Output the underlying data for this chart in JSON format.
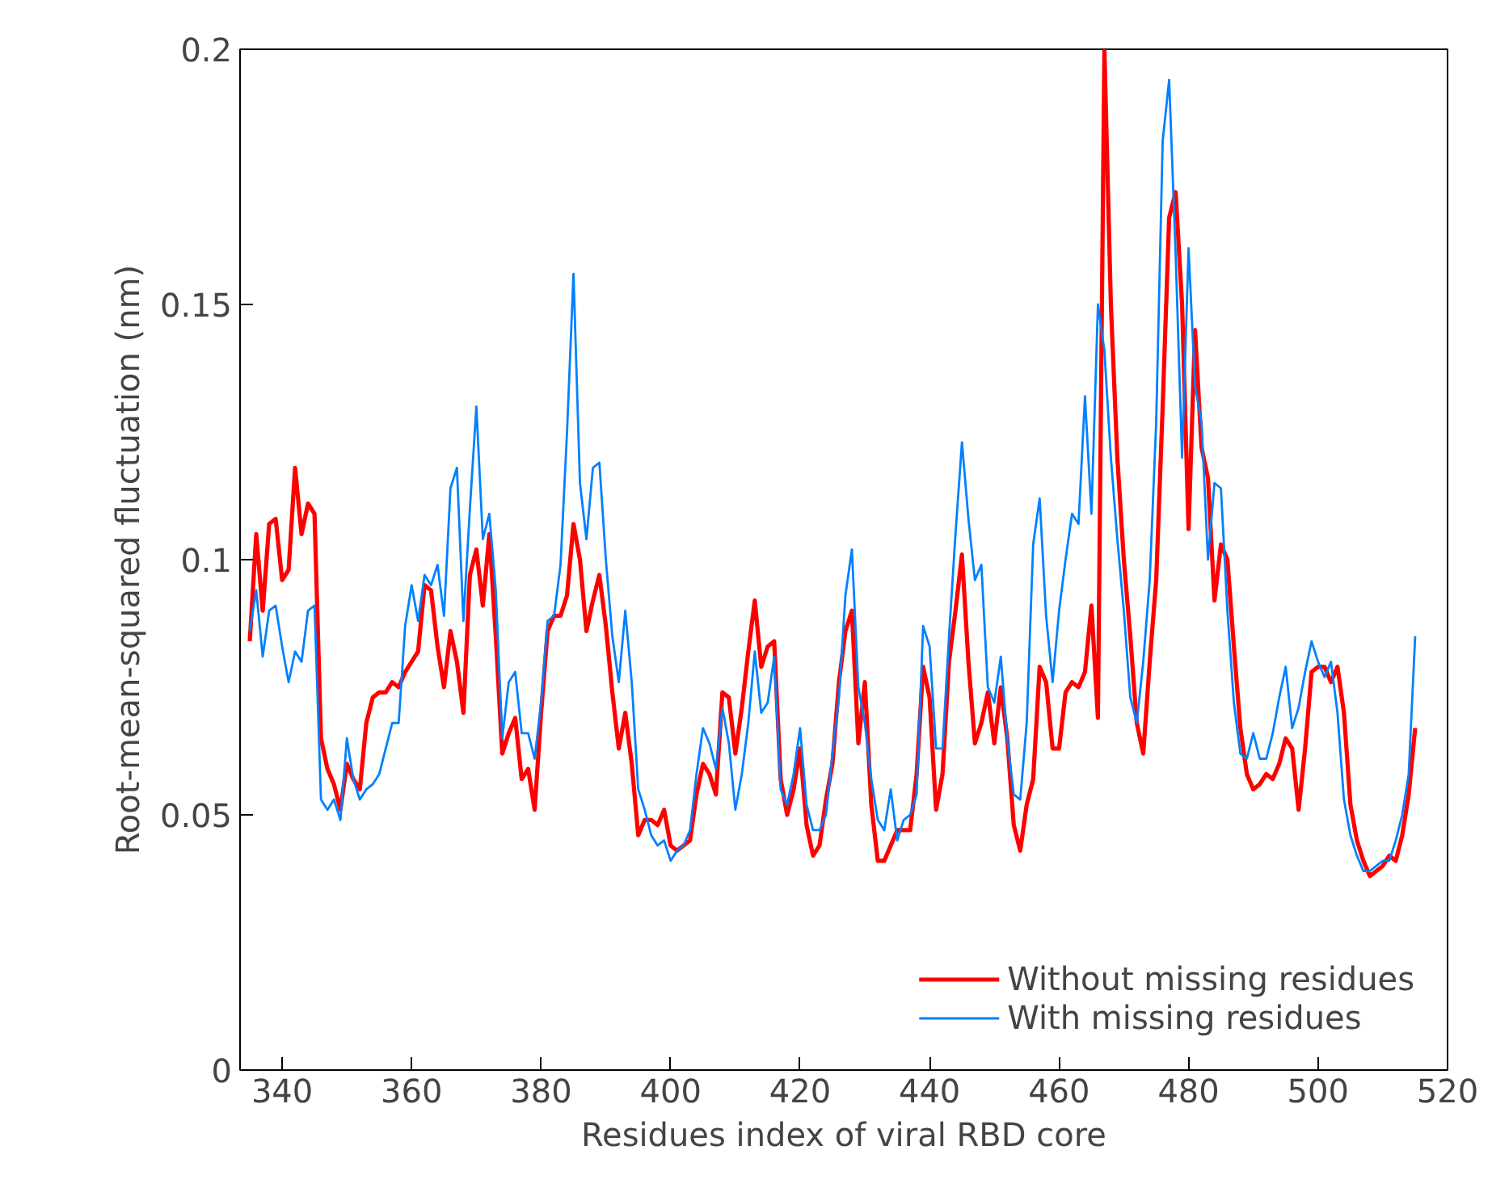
{
  "chart_data": {
    "type": "line",
    "xlabel": "Residues index of viral RBD core",
    "ylabel": "Root-mean-squared fluctuation (nm)",
    "x": [
      335,
      336,
      337,
      338,
      339,
      340,
      341,
      342,
      343,
      344,
      345,
      346,
      347,
      348,
      349,
      350,
      351,
      352,
      353,
      354,
      355,
      356,
      357,
      358,
      359,
      360,
      361,
      362,
      363,
      364,
      365,
      366,
      367,
      368,
      369,
      370,
      371,
      372,
      373,
      374,
      375,
      376,
      377,
      378,
      379,
      380,
      381,
      382,
      383,
      384,
      385,
      386,
      387,
      388,
      389,
      390,
      391,
      392,
      393,
      394,
      395,
      396,
      397,
      398,
      399,
      400,
      401,
      402,
      403,
      404,
      405,
      406,
      407,
      408,
      409,
      410,
      411,
      412,
      413,
      414,
      415,
      416,
      417,
      418,
      419,
      420,
      421,
      422,
      423,
      424,
      425,
      426,
      427,
      428,
      429,
      430,
      431,
      432,
      433,
      434,
      435,
      436,
      437,
      438,
      439,
      440,
      441,
      442,
      443,
      444,
      445,
      446,
      447,
      448,
      449,
      450,
      451,
      452,
      453,
      454,
      455,
      456,
      457,
      458,
      459,
      460,
      461,
      462,
      463,
      464,
      465,
      466,
      467,
      468,
      469,
      470,
      471,
      472,
      473,
      474,
      475,
      476,
      477,
      478,
      479,
      480,
      481,
      482,
      483,
      484,
      485,
      486,
      487,
      488,
      489,
      490,
      491,
      492,
      493,
      494,
      495,
      496,
      497,
      498,
      499,
      500,
      501,
      502,
      503,
      504,
      505,
      506,
      507,
      508,
      509,
      510,
      511,
      512,
      513,
      514,
      515
    ],
    "series": [
      {
        "name": "Without missing residues",
        "color": "#ff0000",
        "values": [
          0.084,
          0.105,
          0.09,
          0.107,
          0.108,
          0.096,
          0.098,
          0.118,
          0.105,
          0.111,
          0.109,
          0.065,
          0.059,
          0.056,
          0.051,
          0.06,
          0.057,
          0.055,
          0.068,
          0.073,
          0.074,
          0.074,
          0.076,
          0.075,
          0.078,
          0.08,
          0.082,
          0.095,
          0.094,
          0.083,
          0.075,
          0.086,
          0.08,
          0.07,
          0.097,
          0.102,
          0.091,
          0.105,
          0.085,
          0.062,
          0.066,
          0.069,
          0.057,
          0.059,
          0.051,
          0.07,
          0.086,
          0.089,
          0.089,
          0.093,
          0.107,
          0.1,
          0.086,
          0.092,
          0.097,
          0.087,
          0.074,
          0.063,
          0.07,
          0.06,
          0.046,
          0.049,
          0.049,
          0.048,
          0.051,
          0.044,
          0.043,
          0.044,
          0.045,
          0.054,
          0.06,
          0.058,
          0.054,
          0.074,
          0.073,
          0.062,
          0.071,
          0.082,
          0.092,
          0.079,
          0.083,
          0.084,
          0.057,
          0.05,
          0.055,
          0.063,
          0.048,
          0.042,
          0.044,
          0.053,
          0.06,
          0.076,
          0.086,
          0.09,
          0.064,
          0.076,
          0.052,
          0.041,
          0.041,
          0.044,
          0.047,
          0.047,
          0.047,
          0.058,
          0.079,
          0.073,
          0.051,
          0.058,
          0.08,
          0.09,
          0.101,
          0.08,
          0.064,
          0.068,
          0.074,
          0.064,
          0.075,
          0.065,
          0.048,
          0.043,
          0.052,
          0.057,
          0.079,
          0.076,
          0.063,
          0.063,
          0.074,
          0.076,
          0.075,
          0.078,
          0.091,
          0.069,
          0.2,
          0.15,
          0.12,
          0.1,
          0.085,
          0.068,
          0.062,
          0.08,
          0.096,
          0.13,
          0.167,
          0.172,
          0.15,
          0.106,
          0.145,
          0.122,
          0.116,
          0.092,
          0.103,
          0.1,
          0.083,
          0.067,
          0.058,
          0.055,
          0.056,
          0.058,
          0.057,
          0.06,
          0.065,
          0.063,
          0.051,
          0.063,
          0.078,
          0.079,
          0.079,
          0.076,
          0.079,
          0.07,
          0.052,
          0.045,
          0.041,
          0.038,
          0.039,
          0.04,
          0.042,
          0.041,
          0.046,
          0.054,
          0.067
        ]
      },
      {
        "name": "With missing residues",
        "color": "#0080ff",
        "values": [
          0.086,
          0.094,
          0.081,
          0.09,
          0.091,
          0.083,
          0.076,
          0.082,
          0.08,
          0.09,
          0.091,
          0.053,
          0.051,
          0.053,
          0.049,
          0.065,
          0.057,
          0.053,
          0.055,
          0.056,
          0.058,
          0.063,
          0.068,
          0.068,
          0.087,
          0.095,
          0.088,
          0.097,
          0.095,
          0.099,
          0.089,
          0.114,
          0.118,
          0.088,
          0.11,
          0.13,
          0.104,
          0.109,
          0.094,
          0.065,
          0.076,
          0.078,
          0.066,
          0.066,
          0.061,
          0.072,
          0.088,
          0.089,
          0.099,
          0.125,
          0.156,
          0.115,
          0.104,
          0.118,
          0.119,
          0.1,
          0.085,
          0.076,
          0.09,
          0.076,
          0.055,
          0.051,
          0.046,
          0.044,
          0.045,
          0.041,
          0.043,
          0.044,
          0.047,
          0.058,
          0.067,
          0.064,
          0.059,
          0.071,
          0.064,
          0.051,
          0.058,
          0.068,
          0.082,
          0.07,
          0.072,
          0.081,
          0.055,
          0.052,
          0.058,
          0.067,
          0.052,
          0.047,
          0.047,
          0.05,
          0.062,
          0.073,
          0.093,
          0.102,
          0.075,
          0.068,
          0.057,
          0.049,
          0.047,
          0.055,
          0.045,
          0.049,
          0.05,
          0.054,
          0.087,
          0.083,
          0.063,
          0.063,
          0.085,
          0.105,
          0.123,
          0.108,
          0.096,
          0.099,
          0.075,
          0.072,
          0.081,
          0.065,
          0.054,
          0.053,
          0.068,
          0.103,
          0.112,
          0.089,
          0.076,
          0.09,
          0.1,
          0.109,
          0.107,
          0.132,
          0.109,
          0.15,
          0.141,
          0.12,
          0.104,
          0.09,
          0.073,
          0.068,
          0.08,
          0.096,
          0.127,
          0.182,
          0.194,
          0.16,
          0.12,
          0.161,
          0.134,
          0.127,
          0.1,
          0.115,
          0.114,
          0.09,
          0.072,
          0.062,
          0.061,
          0.066,
          0.061,
          0.061,
          0.066,
          0.073,
          0.079,
          0.067,
          0.071,
          0.078,
          0.084,
          0.08,
          0.077,
          0.08,
          0.07,
          0.053,
          0.046,
          0.042,
          0.039,
          0.039,
          0.04,
          0.041,
          0.041,
          0.045,
          0.05,
          0.058,
          0.085
        ]
      }
    ],
    "xlim": [
      333.5,
      520
    ],
    "xticks": [
      340,
      360,
      380,
      400,
      420,
      440,
      460,
      480,
      500,
      520
    ],
    "ylim": [
      0,
      0.2
    ],
    "yticks": [
      0,
      0.05,
      0.1,
      0.15,
      0.2
    ],
    "grid": false,
    "legend": "bottom right",
    "marker": "none",
    "line_style": "solid"
  }
}
